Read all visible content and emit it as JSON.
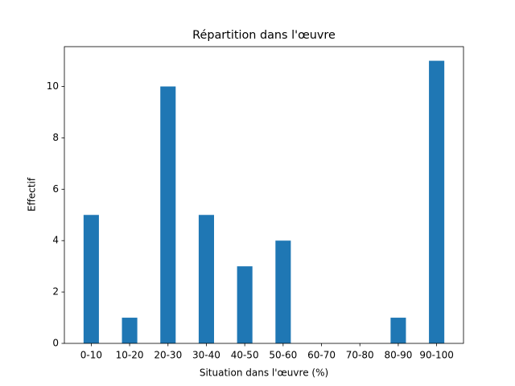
{
  "chart_data": {
    "type": "bar",
    "title": "Répartition dans l'œuvre",
    "x_label": "Situation dans l'œuvre (%)",
    "y_label": "Effectif",
    "categories": [
      "0-10",
      "10-20",
      "20-30",
      "30-40",
      "40-50",
      "50-60",
      "60-70",
      "70-80",
      "80-90",
      "90-100"
    ],
    "values": [
      5,
      1,
      10,
      5,
      3,
      4,
      0,
      0,
      1,
      11
    ],
    "color": "#1f77b4",
    "ylim": [
      0,
      11.55
    ],
    "yticks": [
      0,
      2,
      4,
      6,
      8,
      10
    ],
    "grid": false
  }
}
